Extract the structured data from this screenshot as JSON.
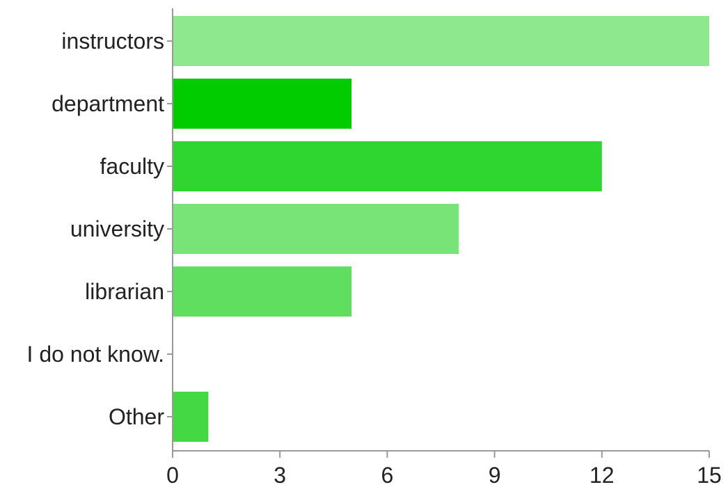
{
  "chart_data": {
    "type": "bar",
    "orientation": "horizontal",
    "categories": [
      "instructors",
      "department",
      "faculty",
      "university",
      "librarian",
      "I do not know.",
      "Other"
    ],
    "values": [
      15,
      5,
      12,
      8,
      5,
      0,
      1
    ],
    "colors": [
      "#8ee98e",
      "#00cc00",
      "#2fd62f",
      "#78e478",
      "#5fde5f",
      "#ffffff",
      "#44d944"
    ],
    "xlim": [
      0,
      15
    ],
    "xticks": [
      "0",
      "3",
      "6",
      "9",
      "12",
      "15"
    ],
    "title": "",
    "xlabel": "",
    "ylabel": "",
    "grid": false,
    "legend": "none"
  }
}
